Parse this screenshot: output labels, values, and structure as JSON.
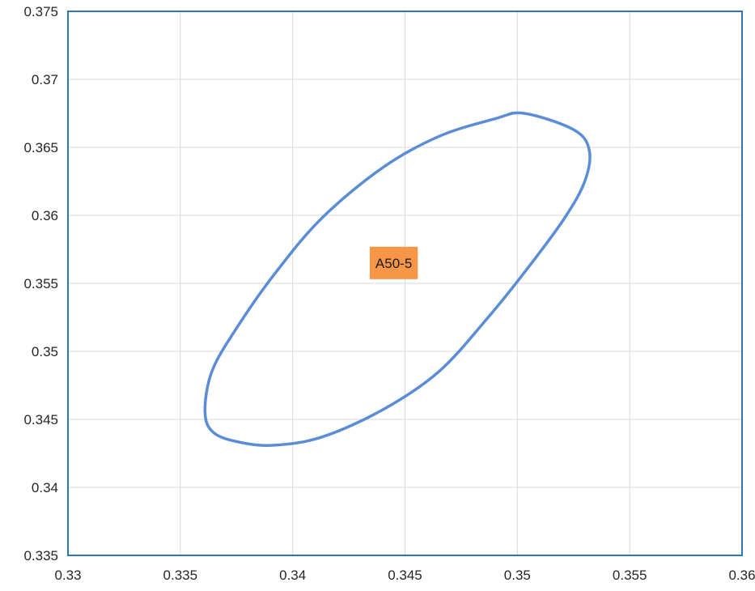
{
  "chart_data": {
    "type": "line",
    "title": "",
    "xlabel": "",
    "ylabel": "",
    "xlim": [
      0.33,
      0.36
    ],
    "ylim": [
      0.335,
      0.375
    ],
    "x_ticks": [
      "0.33",
      "0.335",
      "0.34",
      "0.345",
      "0.35",
      "0.355",
      "0.36"
    ],
    "y_ticks": [
      "0.335",
      "0.34",
      "0.345",
      "0.35",
      "0.355",
      "0.36",
      "0.365",
      "0.37",
      "0.375"
    ],
    "grid": true,
    "legend": "none",
    "series": [
      {
        "type": "ellipse",
        "color": "#5B8DD6",
        "x": [
          0.3503,
          0.3525,
          0.3532,
          0.353,
          0.3521,
          0.3505,
          0.3487,
          0.3465,
          0.344,
          0.3413,
          0.3392,
          0.3377,
          0.3365,
          0.3361,
          0.3364,
          0.3375,
          0.3392,
          0.3413,
          0.344,
          0.3465,
          0.349,
          0.3503
        ],
        "y": [
          0.3675,
          0.3663,
          0.3648,
          0.3625,
          0.3598,
          0.3562,
          0.3525,
          0.3485,
          0.3457,
          0.3437,
          0.3431,
          0.3433,
          0.344,
          0.3455,
          0.3485,
          0.3517,
          0.3557,
          0.3598,
          0.3635,
          0.3658,
          0.3671,
          0.3675
        ]
      }
    ],
    "annotations": [
      {
        "text": "A50-5",
        "x": 0.3445,
        "y": 0.3565,
        "background": "#F79646"
      }
    ]
  }
}
